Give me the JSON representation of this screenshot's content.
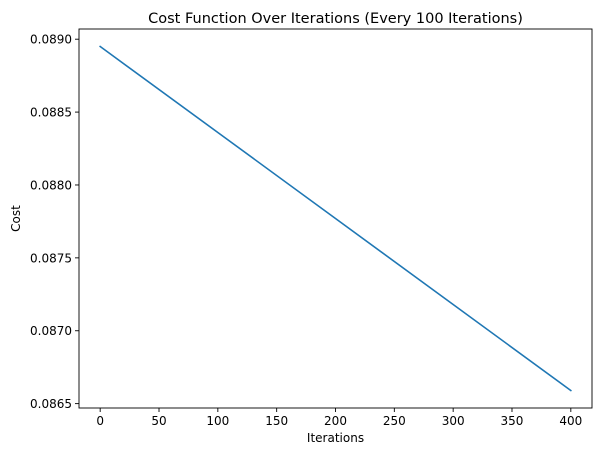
{
  "chart_data": {
    "type": "line",
    "title": "Cost Function Over Iterations (Every 100 Iterations)",
    "xlabel": "Iterations",
    "ylabel": "Cost",
    "xlim": [
      -18,
      418
    ],
    "ylim": [
      0.08647,
      0.08907
    ],
    "x_ticks": [
      0,
      50,
      100,
      150,
      200,
      250,
      300,
      350,
      400
    ],
    "x_tick_labels": [
      "0",
      "50",
      "100",
      "150",
      "200",
      "250",
      "300",
      "350",
      "400"
    ],
    "y_ticks": [
      0.0865,
      0.087,
      0.0875,
      0.088,
      0.0885,
      0.089
    ],
    "y_tick_labels": [
      "0.0865",
      "0.0870",
      "0.0875",
      "0.0880",
      "0.0885",
      "0.0890"
    ],
    "grid": false,
    "series": [
      {
        "color": "#1f77b4",
        "x": [
          0,
          100,
          200,
          300,
          400
        ],
        "y": [
          0.08895,
          0.08836,
          0.08777,
          0.08718,
          0.08659
        ]
      }
    ]
  }
}
